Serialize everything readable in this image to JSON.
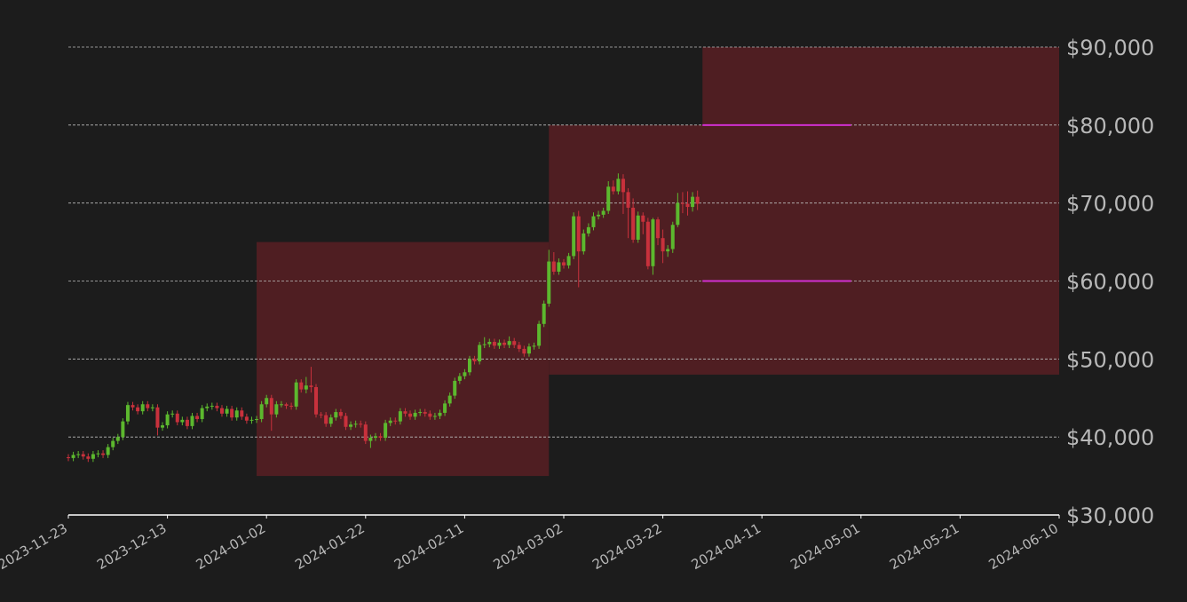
{
  "chart_data": {
    "type": "candlestick",
    "x": [
      "2023-11-23",
      "2023-11-24",
      "2023-11-25",
      "2023-11-26",
      "2023-11-27",
      "2023-11-28",
      "2023-11-29",
      "2023-11-30",
      "2023-12-01",
      "2023-12-02",
      "2023-12-03",
      "2023-12-04",
      "2023-12-05",
      "2023-12-06",
      "2023-12-07",
      "2023-12-08",
      "2023-12-09",
      "2023-12-10",
      "2023-12-11",
      "2023-12-12",
      "2023-12-13",
      "2023-12-14",
      "2023-12-15",
      "2023-12-16",
      "2023-12-17",
      "2023-12-18",
      "2023-12-19",
      "2023-12-20",
      "2023-12-21",
      "2023-12-22",
      "2023-12-23",
      "2023-12-24",
      "2023-12-25",
      "2023-12-26",
      "2023-12-27",
      "2023-12-28",
      "2023-12-29",
      "2023-12-30",
      "2023-12-31",
      "2024-01-01",
      "2024-01-02",
      "2024-01-03",
      "2024-01-04",
      "2024-01-05",
      "2024-01-06",
      "2024-01-07",
      "2024-01-08",
      "2024-01-09",
      "2024-01-10",
      "2024-01-11",
      "2024-01-12",
      "2024-01-13",
      "2024-01-14",
      "2024-01-15",
      "2024-01-16",
      "2024-01-17",
      "2024-01-18",
      "2024-01-19",
      "2024-01-20",
      "2024-01-21",
      "2024-01-22",
      "2024-01-23",
      "2024-01-24",
      "2024-01-25",
      "2024-01-26",
      "2024-01-27",
      "2024-01-28",
      "2024-01-29",
      "2024-01-30",
      "2024-01-31",
      "2024-02-01",
      "2024-02-02",
      "2024-02-03",
      "2024-02-04",
      "2024-02-05",
      "2024-02-06",
      "2024-02-07",
      "2024-02-08",
      "2024-02-09",
      "2024-02-10",
      "2024-02-11",
      "2024-02-12",
      "2024-02-13",
      "2024-02-14",
      "2024-02-15",
      "2024-02-16",
      "2024-02-17",
      "2024-02-18",
      "2024-02-19",
      "2024-02-20",
      "2024-02-21",
      "2024-02-22",
      "2024-02-23",
      "2024-02-24",
      "2024-02-25",
      "2024-02-26",
      "2024-02-27",
      "2024-02-28",
      "2024-02-29",
      "2024-03-01",
      "2024-03-02",
      "2024-03-03",
      "2024-03-04",
      "2024-03-05",
      "2024-03-06",
      "2024-03-07",
      "2024-03-08",
      "2024-03-09",
      "2024-03-10",
      "2024-03-11",
      "2024-03-12",
      "2024-03-13",
      "2024-03-14",
      "2024-03-15",
      "2024-03-16",
      "2024-03-17",
      "2024-03-18",
      "2024-03-19",
      "2024-03-20",
      "2024-03-21",
      "2024-03-22",
      "2024-03-23",
      "2024-03-24",
      "2024-03-25",
      "2024-03-26",
      "2024-03-27",
      "2024-03-28",
      "2024-03-29"
    ],
    "open": [
      37400,
      37300,
      37700,
      37800,
      37500,
      37200,
      37800,
      37900,
      37700,
      38700,
      39500,
      40000,
      42000,
      44100,
      43800,
      43300,
      44200,
      43700,
      43800,
      41200,
      41500,
      42900,
      43000,
      41900,
      42200,
      41400,
      42700,
      42300,
      43700,
      43900,
      44000,
      43700,
      43000,
      43600,
      42500,
      43400,
      42600,
      42100,
      42200,
      42300,
      44200,
      45000,
      42900,
      44200,
      44200,
      44000,
      43900,
      47000,
      46100,
      46600,
      46400,
      42900,
      42800,
      41700,
      42500,
      43200,
      42700,
      41300,
      41600,
      41700,
      41600,
      39500,
      39900,
      40100,
      39900,
      41800,
      42100,
      42000,
      43300,
      43000,
      42600,
      43100,
      43200,
      43000,
      42600,
      42700,
      43100,
      44300,
      45300,
      47200,
      47800,
      48300,
      50000,
      49700,
      51800,
      51900,
      52200,
      51700,
      52100,
      51800,
      52300,
      51800,
      51300,
      50700,
      51600,
      51700,
      54500,
      57100,
      62500,
      61200,
      62400,
      62000,
      63200,
      68300,
      63800,
      66100,
      66900,
      68300,
      68500,
      69000,
      72100,
      71500,
      73100,
      71400,
      69400,
      65300,
      68400,
      67600,
      61900,
      67900,
      65500,
      63800,
      64100,
      67200,
      70000,
      69900,
      69500,
      70800
    ],
    "high": [
      37800,
      38100,
      38200,
      38200,
      37900,
      38200,
      38300,
      38300,
      39100,
      39900,
      40400,
      42400,
      44500,
      44500,
      44200,
      44600,
      44600,
      44200,
      44200,
      41900,
      43300,
      43400,
      43400,
      42600,
      42600,
      43100,
      43100,
      44100,
      44300,
      44400,
      44400,
      44100,
      44000,
      44000,
      43800,
      43800,
      43000,
      42600,
      42700,
      44600,
      45400,
      45400,
      44600,
      44600,
      44400,
      44400,
      47400,
      47400,
      47700,
      49000,
      46800,
      43200,
      43200,
      42900,
      43600,
      43600,
      43100,
      42000,
      42100,
      42100,
      42000,
      40300,
      40500,
      40500,
      42200,
      42500,
      42500,
      43700,
      43700,
      43400,
      43500,
      43600,
      43600,
      43400,
      43100,
      43500,
      44700,
      45700,
      47600,
      48200,
      48700,
      50400,
      50400,
      52200,
      52800,
      52600,
      52600,
      52500,
      52500,
      52900,
      52700,
      52200,
      51700,
      52000,
      52100,
      54900,
      57500,
      64000,
      63700,
      62900,
      62800,
      63600,
      68800,
      69000,
      66600,
      67400,
      68800,
      69000,
      69400,
      72800,
      72900,
      73800,
      73700,
      71900,
      70600,
      68900,
      68800,
      68100,
      68100,
      68200,
      66600,
      64600,
      67600,
      71300,
      71400,
      71500,
      71400,
      71600
    ],
    "low": [
      36900,
      36900,
      37300,
      37100,
      36800,
      36800,
      37400,
      37300,
      37300,
      38300,
      39100,
      39600,
      41600,
      43400,
      42900,
      42900,
      43300,
      43300,
      40200,
      40800,
      41100,
      42500,
      41500,
      41500,
      41000,
      41000,
      41900,
      41900,
      43300,
      43500,
      43300,
      42600,
      42600,
      42100,
      42100,
      42200,
      41700,
      41700,
      41800,
      41900,
      43800,
      40800,
      42500,
      43800,
      43600,
      43500,
      43500,
      45700,
      45600,
      45700,
      42500,
      42400,
      41300,
      41300,
      42100,
      42300,
      40900,
      40900,
      41200,
      41200,
      39100,
      38600,
      39500,
      39500,
      39500,
      41400,
      41600,
      41600,
      42600,
      42200,
      42200,
      42700,
      42600,
      42200,
      42200,
      42300,
      42700,
      43900,
      44900,
      46800,
      47400,
      47900,
      49300,
      49300,
      51400,
      51500,
      51300,
      51300,
      51400,
      51400,
      51400,
      50900,
      50300,
      50300,
      51200,
      51300,
      54100,
      56700,
      60800,
      60800,
      61600,
      61600,
      62800,
      59200,
      63400,
      65700,
      66500,
      67900,
      68100,
      68600,
      71100,
      71100,
      68600,
      65500,
      64900,
      64900,
      66000,
      61500,
      60800,
      64600,
      62300,
      63100,
      63600,
      66900,
      68700,
      68400,
      68900,
      69100
    ],
    "close": [
      37300,
      37700,
      37800,
      37500,
      37200,
      37800,
      37900,
      37700,
      38700,
      39500,
      40000,
      42000,
      44100,
      43800,
      43300,
      44200,
      43700,
      43800,
      41200,
      41500,
      42900,
      43000,
      41900,
      42200,
      41400,
      42700,
      42300,
      43700,
      43900,
      44000,
      43700,
      43000,
      43600,
      42500,
      43400,
      42600,
      42100,
      42200,
      42300,
      44200,
      45000,
      42900,
      44200,
      44200,
      44000,
      43900,
      47000,
      46100,
      46600,
      46400,
      42900,
      42800,
      41700,
      42500,
      43200,
      42700,
      41300,
      41600,
      41700,
      41600,
      39500,
      39900,
      40100,
      39900,
      41800,
      42100,
      42000,
      43300,
      43000,
      42600,
      43100,
      43200,
      43000,
      42600,
      42700,
      43100,
      44300,
      45300,
      47200,
      47800,
      48300,
      50000,
      49700,
      51800,
      51900,
      52200,
      51700,
      52100,
      51800,
      52300,
      51800,
      51300,
      50700,
      51600,
      51700,
      54500,
      57100,
      62500,
      61200,
      62400,
      62000,
      63200,
      68300,
      63800,
      66100,
      66900,
      68300,
      68500,
      69000,
      72100,
      71500,
      73100,
      71400,
      69400,
      65300,
      68400,
      67600,
      61900,
      67900,
      65500,
      63800,
      64100,
      67200,
      70000,
      69900,
      69500,
      70800,
      69900
    ],
    "up_color": "#5cb82e",
    "down_color": "#c8313c",
    "zones": [
      {
        "x": [
          "2023-12-31",
          "2024-02-28"
        ],
        "y": [
          35000,
          65000
        ],
        "color": "#4f1e22"
      },
      {
        "x": [
          "2024-02-28",
          "2024-06-10"
        ],
        "y": [
          48000,
          80000
        ],
        "color": "#4f1e22"
      },
      {
        "x": [
          "2024-03-30",
          "2024-06-10"
        ],
        "y": [
          80000,
          90000
        ],
        "color": "#4f1e22"
      }
    ],
    "levels": [
      {
        "x": [
          "2024-03-30",
          "2024-04-29"
        ],
        "y": 80000,
        "color": "#d030d0"
      },
      {
        "x": [
          "2024-03-30",
          "2024-04-29"
        ],
        "y": 60000,
        "color": "#d030d0"
      }
    ],
    "xlim": [
      "2023-11-23",
      "2024-06-10"
    ],
    "xticks": [
      "2023-11-23",
      "2023-12-13",
      "2024-01-02",
      "2024-01-22",
      "2024-02-11",
      "2024-03-02",
      "2024-03-22",
      "2024-04-11",
      "2024-05-01",
      "2024-05-21",
      "2024-06-10"
    ],
    "ylim": [
      30000,
      90000
    ],
    "yticks": [
      {
        "value": 30000,
        "label": "$30,000"
      },
      {
        "value": 40000,
        "label": "$40,000"
      },
      {
        "value": 50000,
        "label": "$50,000"
      },
      {
        "value": 60000,
        "label": "$60,000"
      },
      {
        "value": 70000,
        "label": "$70,000"
      },
      {
        "value": 80000,
        "label": "$80,000"
      },
      {
        "value": 90000,
        "label": "$90,000"
      }
    ],
    "grid": true
  }
}
